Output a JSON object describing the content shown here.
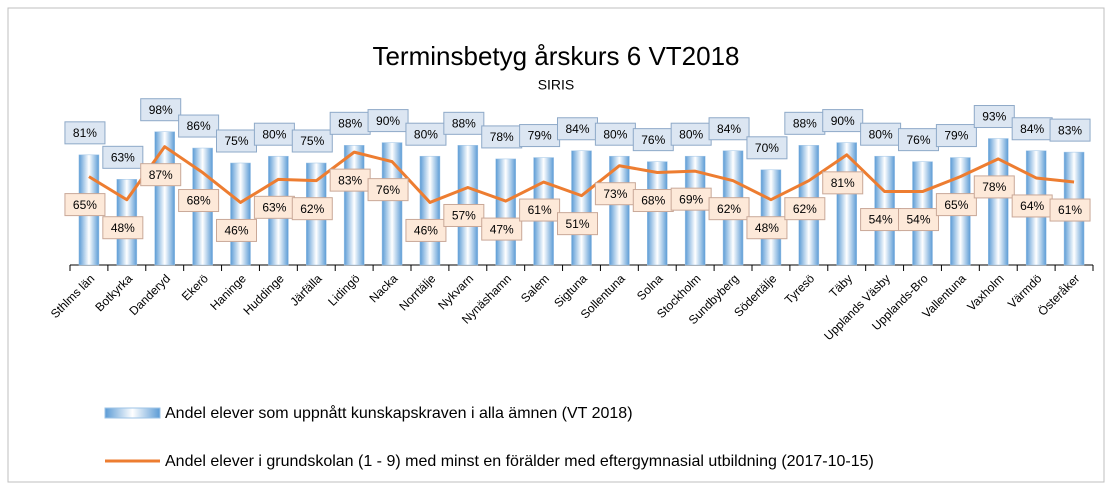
{
  "chart_data": {
    "type": "bar_line",
    "title": "Terminsbetyg årskurs 6 VT2018",
    "subtitle": "SIRIS",
    "categories": [
      "Sthlms län",
      "Botkyrka",
      "Danderyd",
      "Ekerö",
      "Haninge",
      "Huddinge",
      "Järfälla",
      "Lidingö",
      "Nacka",
      "Norrtälje",
      "Nykvarn",
      "Nynäshamn",
      "Salem",
      "Sigtuna",
      "Sollentuna",
      "Solna",
      "Stockholm",
      "Sundbyberg",
      "Södertälje",
      "Tyresö",
      "Täby",
      "Upplands Väsby",
      "Upplands-Bro",
      "Vallentuna",
      "Vaxholm",
      "Värmdö",
      "Österåker"
    ],
    "ylim": [
      0,
      100
    ],
    "series": [
      {
        "name": "Andel elever som uppnått kunskapskraven i alla ämnen (VT 2018)",
        "type": "bar",
        "color": "#5b9bd5",
        "values": [
          81,
          63,
          98,
          86,
          75,
          80,
          75,
          88,
          90,
          80,
          88,
          78,
          79,
          84,
          80,
          76,
          80,
          84,
          70,
          88,
          90,
          80,
          76,
          79,
          93,
          84,
          83
        ],
        "value_labels": [
          "81%",
          "63%",
          "98%",
          "86%",
          "75%",
          "80%",
          "75%",
          "88%",
          "90%",
          "80%",
          "88%",
          "78%",
          "79%",
          "84%",
          "80%",
          "76%",
          "80%",
          "84%",
          "70%",
          "88%",
          "90%",
          "80%",
          "76%",
          "79%",
          "93%",
          "84%",
          "83%"
        ]
      },
      {
        "name": "Andel elever i grundskolan (1 - 9) med minst en förälder med eftergymnasial utbildning (2017-10-15)",
        "type": "line",
        "color": "#ed7d31",
        "values": [
          65,
          48,
          87,
          68,
          46,
          63,
          62,
          83,
          76,
          46,
          57,
          47,
          61,
          51,
          73,
          68,
          69,
          62,
          48,
          62,
          81,
          54,
          54,
          65,
          78,
          64,
          61
        ],
        "value_labels": [
          "65%",
          "48%",
          "87%",
          "68%",
          "46%",
          "63%",
          "62%",
          "83%",
          "76%",
          "46%",
          "57%",
          "47%",
          "61%",
          "51%",
          "73%",
          "68%",
          "69%",
          "62%",
          "48%",
          "62%",
          "81%",
          "54%",
          "54%",
          "65%",
          "78%",
          "64%",
          "61%"
        ]
      }
    ]
  }
}
